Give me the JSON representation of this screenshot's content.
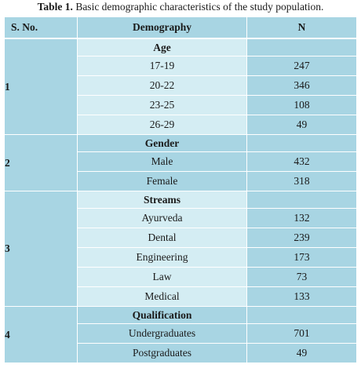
{
  "caption": {
    "label": "Table 1.",
    "text": "Basic demographic characteristics of the study population."
  },
  "table": {
    "headers": {
      "sno": "S. No.",
      "demography": "Demography",
      "n": "N"
    },
    "groups": [
      {
        "sno": "1",
        "category": "Age",
        "rows": [
          {
            "label": "17-19",
            "n": "247"
          },
          {
            "label": "20-22",
            "n": "346"
          },
          {
            "label": "23-25",
            "n": "108"
          },
          {
            "label": "26-29",
            "n": "49"
          }
        ]
      },
      {
        "sno": "2",
        "category": "Gender",
        "rows": [
          {
            "label": "Male",
            "n": "432"
          },
          {
            "label": "Female",
            "n": "318"
          }
        ]
      },
      {
        "sno": "3",
        "category": "Streams",
        "rows": [
          {
            "label": "Ayurveda",
            "n": "132"
          },
          {
            "label": "Dental",
            "n": "239"
          },
          {
            "label": "Engineering",
            "n": "173"
          },
          {
            "label": "Law",
            "n": "73"
          },
          {
            "label": "Medical",
            "n": "133"
          }
        ]
      },
      {
        "sno": "4",
        "category": "Qualification",
        "rows": [
          {
            "label": "Undergraduates",
            "n": "701"
          },
          {
            "label": "Postgraduates",
            "n": "49"
          }
        ]
      }
    ]
  },
  "colors": {
    "header": "#a8d5e3",
    "light_band": "#d4edf3",
    "dark_band": "#a8d5e3"
  }
}
